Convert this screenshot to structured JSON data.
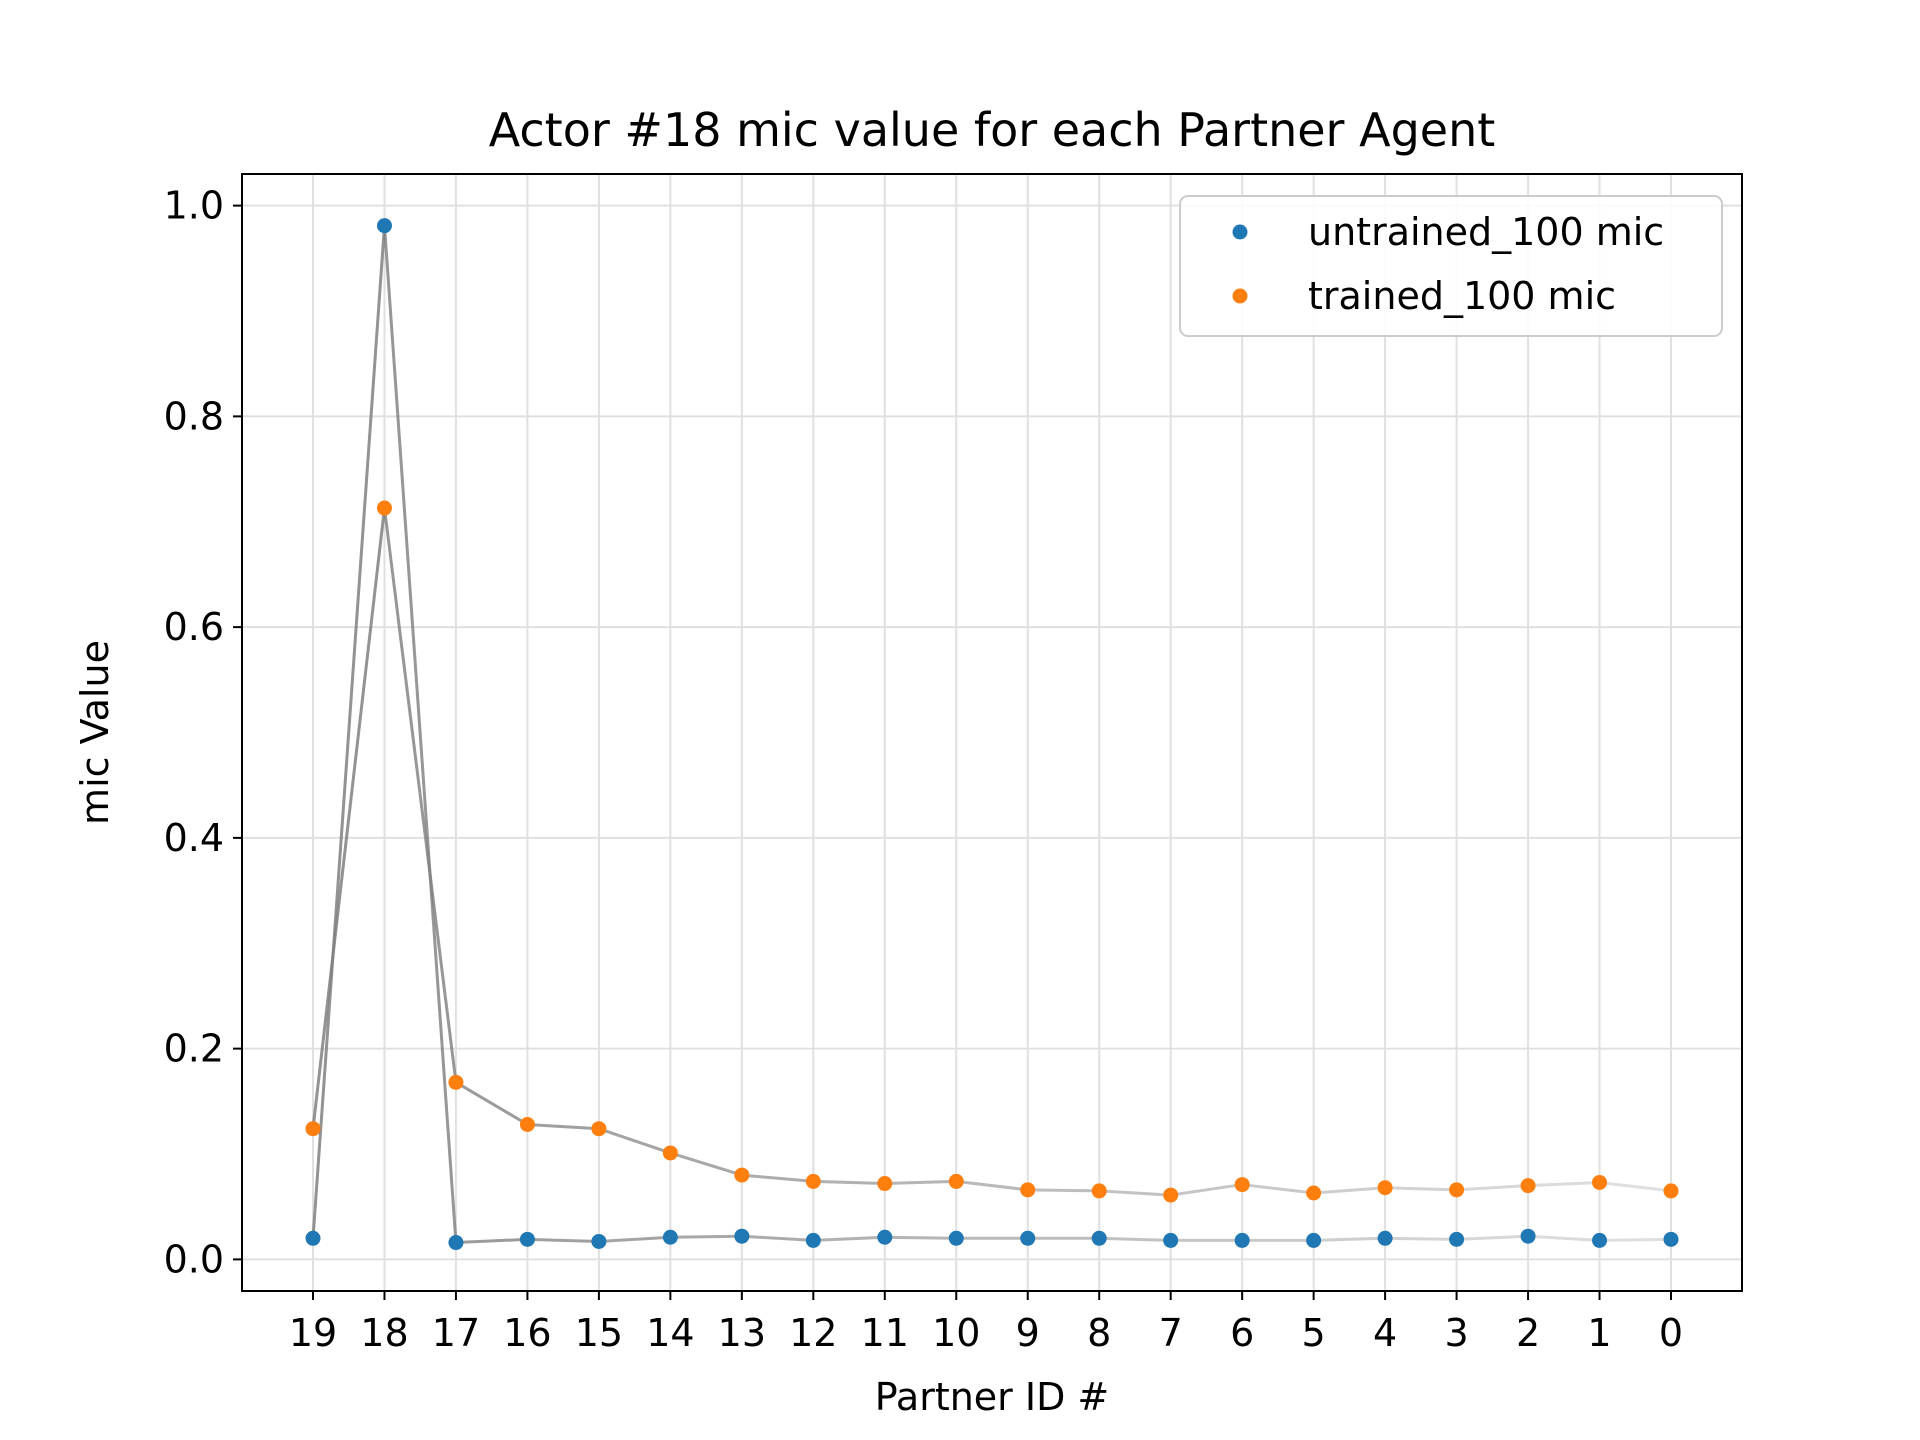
{
  "chart_data": {
    "type": "scatter",
    "title": "Actor #18 mic value for each Partner Agent",
    "xlabel": "Partner ID #",
    "ylabel": "mic Value",
    "categories": [
      "19",
      "18",
      "17",
      "16",
      "15",
      "14",
      "13",
      "12",
      "11",
      "10",
      "9",
      "8",
      "7",
      "6",
      "5",
      "4",
      "3",
      "2",
      "1",
      "0"
    ],
    "ylim": [
      -0.03,
      1.03
    ],
    "yticks": [
      "0.0",
      "0.2",
      "0.4",
      "0.6",
      "0.8",
      "1.0"
    ],
    "grid": true,
    "legend_position": "top-right",
    "series": [
      {
        "name": "untrained_100 mic",
        "color": "#1f77b4",
        "values": [
          0.02,
          0.981,
          0.016,
          0.019,
          0.017,
          0.021,
          0.022,
          0.018,
          0.021,
          0.02,
          0.02,
          0.02,
          0.018,
          0.018,
          0.018,
          0.02,
          0.019,
          0.022,
          0.018,
          0.019
        ]
      },
      {
        "name": "trained_100 mic",
        "color": "#ff7f0e",
        "values": [
          0.124,
          0.713,
          0.168,
          0.128,
          0.124,
          0.101,
          0.08,
          0.074,
          0.072,
          0.074,
          0.066,
          0.065,
          0.061,
          0.071,
          0.063,
          0.068,
          0.066,
          0.07,
          0.073,
          0.065
        ]
      }
    ],
    "connector_color": "#808080"
  }
}
